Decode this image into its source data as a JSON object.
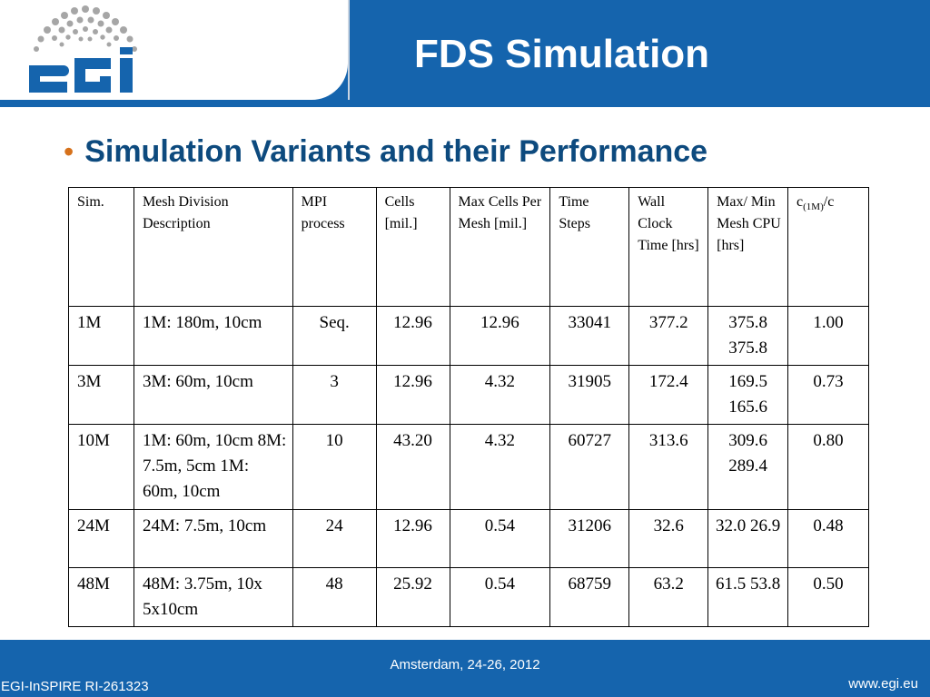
{
  "header": {
    "title": "FDS Simulation",
    "logo_text": "egi"
  },
  "bullet": {
    "glyph": "•",
    "text": "Simulation Variants and their Performance"
  },
  "table": {
    "headers": [
      "Sim.",
      "Mesh Division Description",
      "MPI process",
      "Cells [mil.]",
      "Max Cells Per Mesh [mil.]",
      "Time Steps",
      "Wall Clock Time [hrs]",
      "Max/ Min Mesh CPU [hrs]"
    ],
    "last_header": {
      "c": "c",
      "sub": "(1M)",
      "suffix": "/c"
    },
    "rows": [
      [
        "1M",
        "1M: 180m, 10cm",
        "Seq.",
        "12.96",
        "12.96",
        "33041",
        "377.2",
        "375.8 375.8",
        "1.00"
      ],
      [
        "3M",
        "3M: 60m, 10cm",
        "3",
        "12.96",
        "4.32",
        "31905",
        "172.4",
        "169.5 165.6",
        "0.73"
      ],
      [
        "10M",
        "1M: 60m, 10cm 8M: 7.5m, 5cm 1M: 60m, 10cm",
        "10",
        "43.20",
        "4.32",
        "60727",
        "313.6",
        "309.6 289.4",
        "0.80"
      ],
      [
        "24M",
        "24M: 7.5m, 10cm",
        "24",
        "12.96",
        "0.54",
        "31206",
        "32.6",
        "32.0 26.9",
        "0.48"
      ],
      [
        "48M",
        "48M: 3.75m, 10x 5x10cm",
        "48",
        "25.92",
        "0.54",
        "68759",
        "63.2",
        "61.5 53.8",
        "0.50"
      ]
    ]
  },
  "footer": {
    "center": "Amsterdam, 24-26, 2012",
    "left": "EGI-InSPIRE RI-261323",
    "right": "www.egi.eu"
  },
  "colors": {
    "brand_blue": "#1564ad",
    "heading_blue": "#0d4a7e",
    "bullet_orange": "#d6711b",
    "logo_dots": "#a6a6a6"
  }
}
